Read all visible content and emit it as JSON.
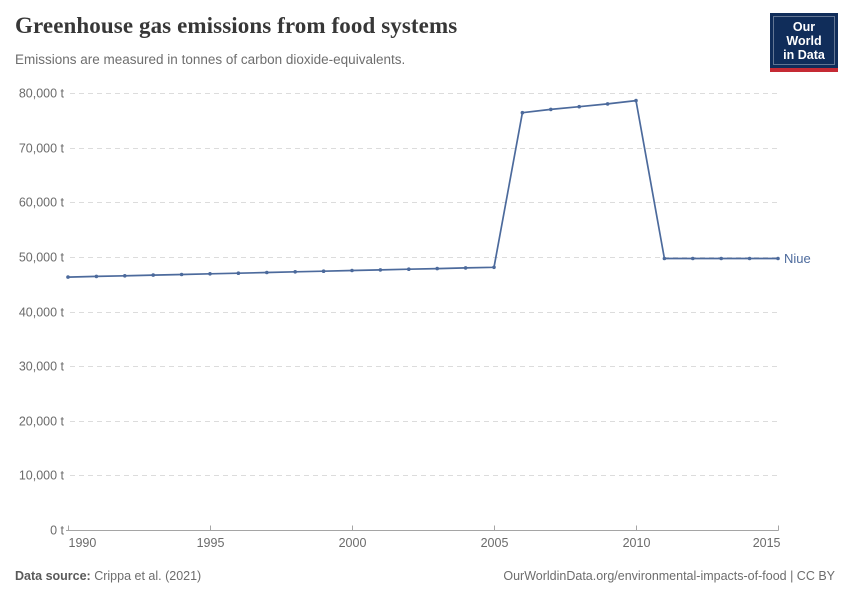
{
  "header": {
    "title": "Greenhouse gas emissions from food systems",
    "subtitle": "Emissions are measured in tonnes of carbon dioxide-equivalents."
  },
  "logo": {
    "line1": "Our World",
    "line2": "in Data",
    "bg_color": "#102d5a",
    "bar_color": "#c52a34"
  },
  "footer": {
    "source_label": "Data source:",
    "source_value": " Crippa et al. (2021)",
    "link": "OurWorldinData.org/environmental-impacts-of-food | CC BY"
  },
  "chart_data": {
    "type": "line",
    "title": "Greenhouse gas emissions from food systems",
    "ylabel": "tonnes of carbon dioxide-equivalents",
    "xlabel": "",
    "xlim": [
      1990,
      2015
    ],
    "ylim": [
      0,
      80000
    ],
    "grid": "dashed-horizontal",
    "legend_position": "end-of-line",
    "x": [
      1990,
      1991,
      1992,
      1993,
      1994,
      1995,
      1996,
      1997,
      1998,
      1999,
      2000,
      2001,
      2002,
      2003,
      2004,
      2005,
      2006,
      2007,
      2008,
      2009,
      2010,
      2011,
      2012,
      2013,
      2014,
      2015
    ],
    "series": [
      {
        "name": "Niue",
        "color": "#4C6A9C",
        "values": [
          46300,
          46420,
          46540,
          46660,
          46780,
          46900,
          47020,
          47140,
          47260,
          47380,
          47500,
          47620,
          47740,
          47860,
          47980,
          48100,
          76400,
          77000,
          77500,
          78000,
          78600,
          49700,
          49700,
          49700,
          49700,
          49700
        ]
      }
    ],
    "y_ticks": [
      {
        "value": 0,
        "label": "0 t"
      },
      {
        "value": 10000,
        "label": "10,000 t"
      },
      {
        "value": 20000,
        "label": "20,000 t"
      },
      {
        "value": 30000,
        "label": "30,000 t"
      },
      {
        "value": 40000,
        "label": "40,000 t"
      },
      {
        "value": 50000,
        "label": "50,000 t"
      },
      {
        "value": 60000,
        "label": "60,000 t"
      },
      {
        "value": 70000,
        "label": "70,000 t"
      },
      {
        "value": 80000,
        "label": "80,000 t"
      }
    ],
    "x_ticks": [
      {
        "year": 1990,
        "label": "1990"
      },
      {
        "year": 1995,
        "label": "1995"
      },
      {
        "year": 2000,
        "label": "2000"
      },
      {
        "year": 2005,
        "label": "2005"
      },
      {
        "year": 2010,
        "label": "2010"
      },
      {
        "year": 2015,
        "label": "2015"
      }
    ]
  }
}
